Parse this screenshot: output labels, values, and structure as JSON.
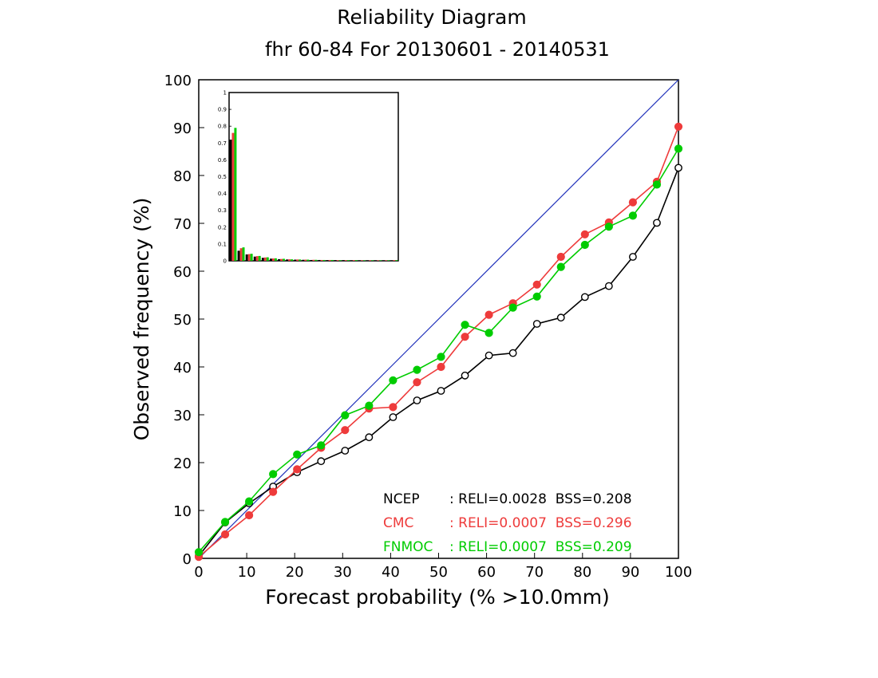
{
  "chart_data": {
    "type": "line",
    "title": "Reliability Diagram",
    "subtitle": "fhr 60-84 For 20130601 - 20140531",
    "xlabel": "Forecast probability (% >10.0mm)",
    "ylabel": "Observed frequency (%)",
    "xlim": [
      0,
      100
    ],
    "ylim": [
      0,
      100
    ],
    "x_ticks": [
      "0",
      "10",
      "20",
      "30",
      "40",
      "50",
      "60",
      "70",
      "80",
      "90",
      "100"
    ],
    "y_ticks": [
      "0",
      "10",
      "20",
      "30",
      "40",
      "50",
      "60",
      "70",
      "80",
      "90",
      "100"
    ],
    "grid": false,
    "diagonal_color": "#2233bb",
    "x": [
      0,
      5.5,
      10.5,
      15.5,
      20.5,
      25.5,
      30.5,
      35.5,
      40.5,
      45.5,
      50.5,
      55.5,
      60.5,
      65.5,
      70.5,
      75.5,
      80.5,
      85.5,
      90.5,
      95.5,
      100
    ],
    "series": [
      {
        "name": "NCEP",
        "color": "#000000",
        "marker": "open-circle",
        "values": [
          0.5,
          7.5,
          11.5,
          15.0,
          18.0,
          20.3,
          22.5,
          25.3,
          29.5,
          33.0,
          35.0,
          38.2,
          42.4,
          42.9,
          49.0,
          50.3,
          54.6,
          56.9,
          63.0,
          70.1,
          81.6
        ]
      },
      {
        "name": "CMC",
        "color": "#ee3b3b",
        "marker": "filled-circle",
        "values": [
          0.3,
          5.0,
          9.0,
          13.9,
          18.6,
          23.1,
          26.8,
          31.3,
          31.6,
          36.8,
          40.0,
          46.3,
          50.9,
          53.3,
          57.2,
          63.0,
          67.7,
          70.2,
          74.4,
          78.7,
          90.2
        ]
      },
      {
        "name": "FNMOC",
        "color": "#00cc00",
        "marker": "filled-circle",
        "values": [
          1.3,
          7.6,
          11.9,
          17.6,
          21.7,
          23.6,
          29.9,
          31.9,
          37.2,
          39.4,
          42.1,
          48.8,
          47.1,
          52.4,
          54.7,
          60.9,
          65.5,
          69.3,
          71.6,
          78.1,
          85.6
        ]
      }
    ],
    "legend": {
      "placement": "bottom-right",
      "entries": [
        {
          "name": "NCEP",
          "stats": ": RELI=0.0028  BSS=0.208",
          "color": "#000000"
        },
        {
          "name": "CMC",
          "stats": ": RELI=0.0007  BSS=0.296",
          "color": "#ee3b3b"
        },
        {
          "name": "FNMOC",
          "stats": ": RELI=0.0007  BSS=0.209",
          "color": "#00cc00"
        }
      ]
    },
    "inset": {
      "type": "bar",
      "placement": "top-left",
      "ylim": [
        0,
        1
      ],
      "y_ticks": [
        "0",
        "0.1",
        "0.2",
        "0.3",
        "0.4",
        "0.5",
        "0.6",
        "0.7",
        "0.8",
        "0.9",
        "1"
      ],
      "bins": 21,
      "series": [
        {
          "name": "NCEP",
          "color": "#000000",
          "values": [
            0.72,
            0.06,
            0.038,
            0.025,
            0.018,
            0.013,
            0.01,
            0.008,
            0.007,
            0.006,
            0.005,
            0.005,
            0.004,
            0.004,
            0.004,
            0.003,
            0.003,
            0.003,
            0.003,
            0.003,
            0.003
          ]
        },
        {
          "name": "CMC",
          "color": "#ee3b3b",
          "values": [
            0.76,
            0.075,
            0.04,
            0.028,
            0.02,
            0.014,
            0.011,
            0.009,
            0.008,
            0.007,
            0.006,
            0.005,
            0.005,
            0.004,
            0.004,
            0.004,
            0.003,
            0.003,
            0.003,
            0.003,
            0.004
          ]
        },
        {
          "name": "FNMOC",
          "color": "#00cc00",
          "values": [
            0.79,
            0.08,
            0.042,
            0.029,
            0.021,
            0.015,
            0.012,
            0.009,
            0.008,
            0.007,
            0.006,
            0.005,
            0.005,
            0.004,
            0.004,
            0.004,
            0.003,
            0.003,
            0.003,
            0.003,
            0.004
          ]
        }
      ]
    }
  }
}
